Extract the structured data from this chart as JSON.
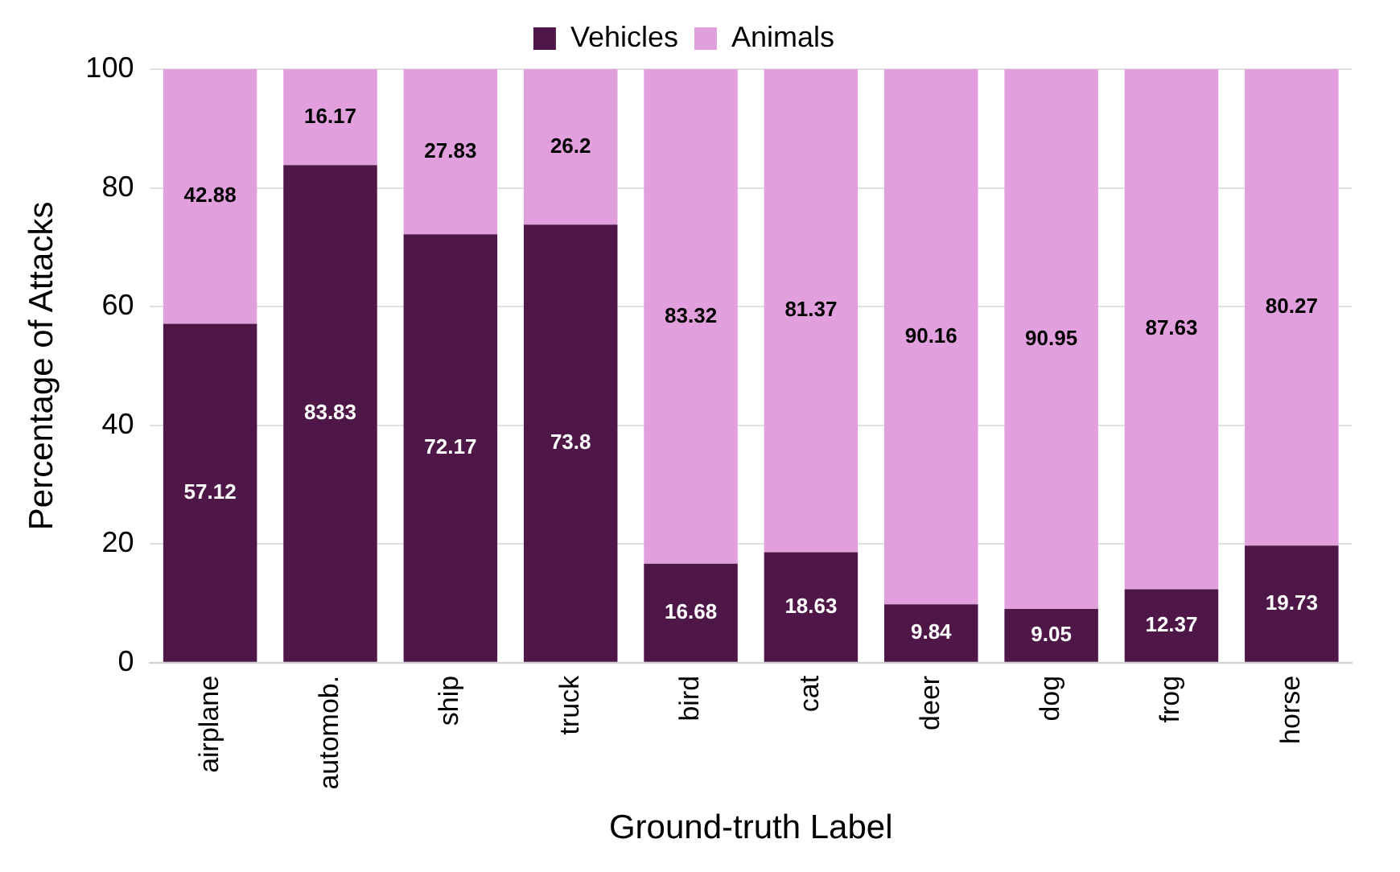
{
  "chart_data": {
    "type": "bar",
    "stacked": true,
    "xlabel": "Ground-truth Label",
    "ylabel": "Percentage of Attacks",
    "categories": [
      "airplane",
      "automob.",
      "ship",
      "truck",
      "bird",
      "cat",
      "deer",
      "dog",
      "frog",
      "horse"
    ],
    "series": [
      {
        "name": "Vehicles",
        "color": "#4e1747",
        "values": [
          57.12,
          83.83,
          72.17,
          73.8,
          16.68,
          18.63,
          9.84,
          9.05,
          12.37,
          19.73
        ]
      },
      {
        "name": "Animals",
        "color": "#e29fdd",
        "values": [
          42.88,
          16.17,
          27.83,
          26.2,
          83.32,
          81.37,
          90.16,
          90.95,
          87.63,
          80.27
        ]
      }
    ],
    "ylim": [
      0,
      100
    ],
    "yticks": [
      0,
      20,
      40,
      60,
      80,
      100
    ],
    "grid": "y",
    "legend": "top",
    "data_labels": true
  }
}
